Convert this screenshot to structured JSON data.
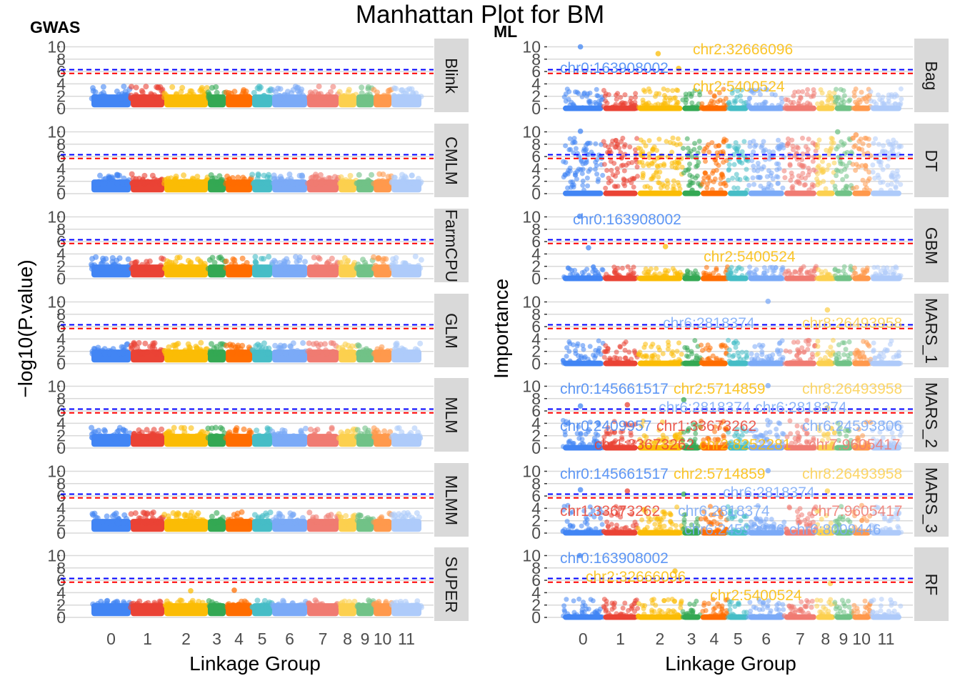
{
  "chart_data": {
    "type": "scatter",
    "title": "Manhattan Plot for BM",
    "xlabel": "Linkage Group",
    "chromosomes": [
      "0",
      "1",
      "2",
      "3",
      "4",
      "5",
      "6",
      "7",
      "8",
      "9",
      "10",
      "11"
    ],
    "chrom_sizes": [
      55,
      47,
      61,
      25,
      37,
      28,
      49,
      44,
      25,
      24,
      25,
      42
    ],
    "chrom_colors": [
      "#4285F4",
      "#EA4335",
      "#FBBC05",
      "#34A853",
      "#FF6D00",
      "#46BDC6",
      "#7BAAF7",
      "#F07B72",
      "#FCD04F",
      "#71C287",
      "#FF994D",
      "#AECBFA"
    ],
    "ylim": [
      0,
      10
    ],
    "yticks": [
      0,
      2,
      4,
      6,
      8,
      10
    ],
    "thresholds": [
      {
        "value": 6.3,
        "color": "#0000FF"
      },
      {
        "value": 5.7,
        "color": "#FF0000"
      }
    ],
    "grid": true,
    "sides": [
      {
        "tag": "GWAS",
        "ylabel": "−log10(P.value)",
        "panels": [
          {
            "name": "Blink",
            "bg_max": 3.6,
            "peaks": []
          },
          {
            "name": "CMLM",
            "bg_max": 3.2,
            "peaks": []
          },
          {
            "name": "FarmCPU",
            "bg_max": 3.6,
            "peaks": []
          },
          {
            "name": "GLM",
            "bg_max": 3.4,
            "peaks": []
          },
          {
            "name": "MLM",
            "bg_max": 3.3,
            "peaks": []
          },
          {
            "name": "MLMM",
            "bg_max": 3.4,
            "peaks": []
          },
          {
            "name": "SUPER",
            "bg_max": 2.8,
            "peaks": [
              {
                "x": 139,
                "y": 4.3
              },
              {
                "x": 200,
                "y": 4.4
              }
            ]
          }
        ]
      },
      {
        "tag": "ML",
        "ylabel": "Importance",
        "panels": [
          {
            "name": "Bag",
            "bg_max": 3.2,
            "peaks": [
              {
                "x": 24,
                "y": 10
              },
              {
                "x": 130,
                "y": 8.9
              },
              {
                "x": 158,
                "y": 6.5
              }
            ],
            "annotations": [
              {
                "text": "chr0:163908002",
                "chrom": 0,
                "x": 71,
                "y": 6.4
              },
              {
                "text": "chr2:32666096",
                "chrom": 2,
                "x": 245,
                "y": 9.1
              },
              {
                "text": "chr2:5400524",
                "chrom": 2,
                "x": 241,
                "y": 4.6
              }
            ]
          },
          {
            "name": "DT",
            "bg_max": 8.5,
            "peaks": [
              {
                "x": 24,
                "y": 10.1
              },
              {
                "x": 400,
                "y": 9.5
              },
              {
                "x": 375,
                "y": 10
              }
            ],
            "annotations": []
          },
          {
            "name": "GBM",
            "bg_max": 2.0,
            "peaks": [
              {
                "x": 23,
                "y": 10.1
              },
              {
                "x": 140,
                "y": 5.2
              },
              {
                "x": 35,
                "y": 5.0
              }
            ],
            "annotations": [
              {
                "text": "chr0:163908002",
                "chrom": 0,
                "x": 87,
                "y": 8.3
              },
              {
                "text": "chr2:5400524",
                "chrom": 2,
                "x": 256,
                "y": 4.3
              }
            ]
          },
          {
            "name": "MARS_1",
            "bg_max": 3.8,
            "peaks": [
              {
                "x": 280,
                "y": 10.1
              },
              {
                "x": 361,
                "y": 8.7
              }
            ],
            "annotations": [
              {
                "text": "chr6:2818374",
                "chrom": 6,
                "x": 199,
                "y": 7.8
              },
              {
                "text": "chr8:26493958",
                "chrom": 8,
                "x": 395,
                "y": 6.1
              }
            ]
          },
          {
            "name": "MARS_2",
            "bg_max": 4.5,
            "peaks": [
              {
                "x": 24,
                "y": 6.8
              },
              {
                "x": 88,
                "y": 7.0
              },
              {
                "x": 165,
                "y": 7.8
              },
              {
                "x": 280,
                "y": 10.1
              },
              {
                "x": 361,
                "y": 6.5
              }
            ],
            "annotations": [
              {
                "text": "chr0:145661517",
                "chrom": 0,
                "x": 71,
                "y": 9.3
              },
              {
                "text": "chr2:5714859",
                "chrom": 2,
                "x": 197,
                "y": 9.3
              },
              {
                "text": "chr6:2818374",
                "chrom": 6,
                "x": 192,
                "y": 9.0
              },
              {
                "text": "chr6:2818374",
                "chrom": 6,
                "x": 278,
                "y": 8.3
              },
              {
                "text": "chr8:26493958",
                "chrom": 8,
                "x": 395,
                "y": 9.3
              },
              {
                "text": "chr0:2409957",
                "chrom": 0,
                "x": 58,
                "y": 4.4
              },
              {
                "text": "chr1:33673262",
                "chrom": 1,
                "x": 195,
                "y": 3.5
              },
              {
                "text": "chr2:8252281",
                "chrom": 2,
                "x": 250,
                "y": 3.5
              },
              {
                "text": "chr6:24593806",
                "chrom": 6,
                "x": 395,
                "y": 5.1
              },
              {
                "text": "chr7:9605417",
                "chrom": 7,
                "x": 397,
                "y": 3.7
              },
              {
                "text": "chr1:33673262",
                "chrom": 1,
                "x": 137,
                "y": 1.6
              }
            ]
          },
          {
            "name": "MARS_3",
            "bg_max": 4.5,
            "peaks": [
              {
                "x": 24,
                "y": 7.0
              },
              {
                "x": 88,
                "y": 6.8
              },
              {
                "x": 165,
                "y": 6.3
              },
              {
                "x": 280,
                "y": 10.1
              },
              {
                "x": 361,
                "y": 6.8
              }
            ],
            "annotations": [
              {
                "text": "chr0:145661517",
                "chrom": 0,
                "x": 71,
                "y": 9.3
              },
              {
                "text": "chr2:5714859",
                "chrom": 2,
                "x": 187,
                "y": 9.3
              },
              {
                "text": "chr6:2818374",
                "chrom": 6,
                "x": 280,
                "y": 9.3
              },
              {
                "text": "chr8:26493958",
                "chrom": 8,
                "x": 395,
                "y": 9.3
              },
              {
                "text": "chr6:2818374",
                "chrom": 6,
                "x": 219,
                "y": 8.0
              },
              {
                "text": "chr1:33673262",
                "chrom": 1,
                "x": 65,
                "y": 4.1
              },
              {
                "text": "chr6:24593806",
                "chrom": 6,
                "x": 233,
                "y": 4.1
              },
              {
                "text": "chr7:9605417",
                "chrom": 7,
                "x": 400,
                "y": 4.3
              },
              {
                "text": "chr6:8009446",
                "chrom": 6,
                "x": 316,
                "y": 1.5
              }
            ]
          },
          {
            "name": "RF",
            "bg_max": 3.0,
            "peaks": [
              {
                "x": 23,
                "y": 10
              },
              {
                "x": 153,
                "y": 7.5
              },
              {
                "x": 365,
                "y": 5.5
              }
            ],
            "annotations": [
              {
                "text": "chr0:163908002",
                "chrom": 0,
                "x": 71,
                "y": 9.2
              },
              {
                "text": "chr2:32666096",
                "chrom": 2,
                "x": 100,
                "y": 8.5
              },
              {
                "text": "chr2:5400524",
                "chrom": 2,
                "x": 263,
                "y": 4.4
              }
            ]
          }
        ]
      }
    ]
  }
}
